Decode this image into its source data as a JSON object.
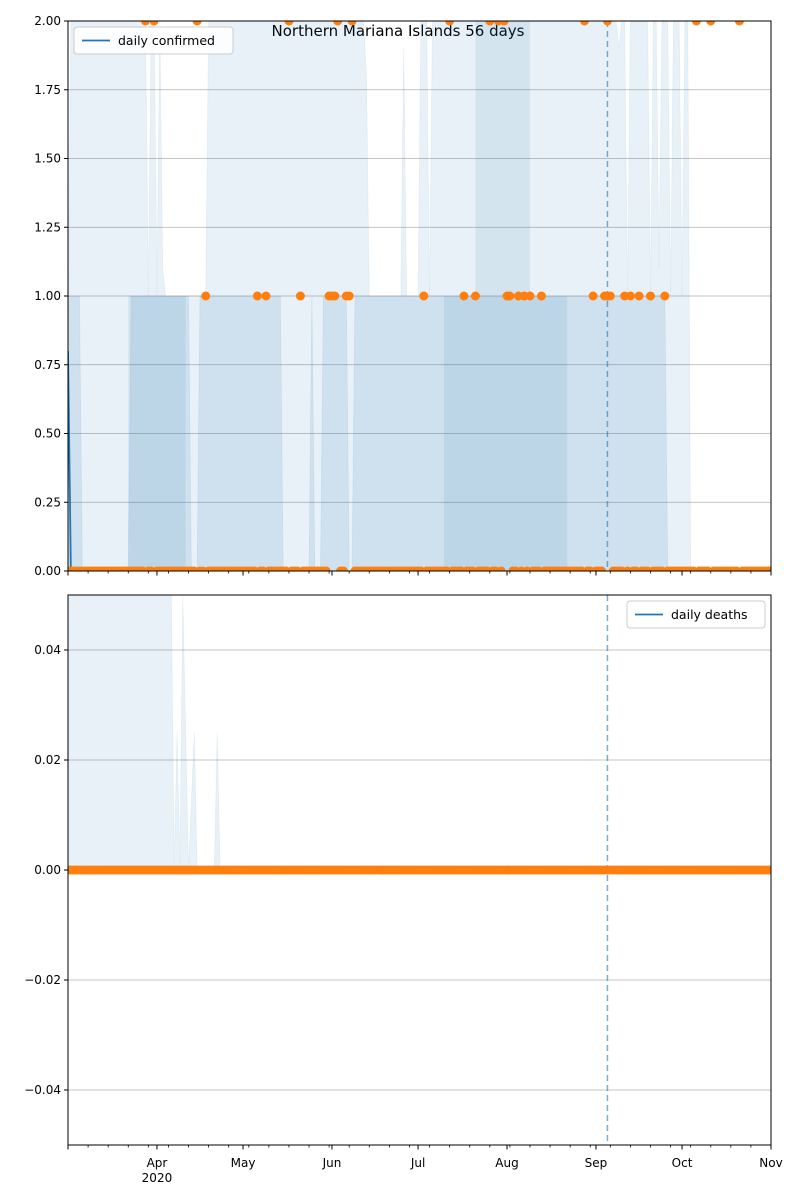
{
  "figure_title": "Northern Mariana Islands 56 days",
  "colors": {
    "line": "#1f77b4",
    "points": "#ff7f0e",
    "band": "#1f77b4",
    "grid": "#b0b0b0",
    "vline": "#1f77b4"
  },
  "chart_data": [
    {
      "type": "line",
      "title": "Northern Mariana Islands 56 days",
      "legend": {
        "label": "daily confirmed",
        "position": "top-left"
      },
      "ylim": [
        0,
        2
      ],
      "yticks": [
        0,
        0.25,
        0.5,
        0.75,
        1.0,
        1.25,
        1.5,
        1.75,
        2.0
      ],
      "ytick_labels": [
        "0.00",
        "0.25",
        "0.50",
        "0.75",
        "1.00",
        "1.25",
        "1.50",
        "1.75",
        "2.00"
      ],
      "grid": "y",
      "xlim": [
        "2020-03-01",
        "2020-11-01"
      ],
      "xtick_labels": [
        {
          "date": "2020-04-01",
          "label": "Apr",
          "sublabel": "2020"
        },
        {
          "date": "2020-05-01",
          "label": "May"
        },
        {
          "date": "2020-06-01",
          "label": "Jun"
        },
        {
          "date": "2020-07-01",
          "label": "Jul"
        },
        {
          "date": "2020-08-01",
          "label": "Aug"
        },
        {
          "date": "2020-09-01",
          "label": "Sep"
        },
        {
          "date": "2020-10-01",
          "label": "Oct"
        },
        {
          "date": "2020-11-01",
          "label": "Nov"
        }
      ],
      "line_series": {
        "name": "daily confirmed",
        "points": [
          [
            "2020-03-01",
            0.8
          ],
          [
            "2020-03-02",
            0
          ]
        ]
      },
      "observed_ones": [
        "2020-04-18",
        "2020-05-06",
        "2020-05-09",
        "2020-05-21",
        "2020-05-31",
        "2020-06-01",
        "2020-06-02",
        "2020-06-06",
        "2020-06-07",
        "2020-07-03",
        "2020-07-17",
        "2020-07-21",
        "2020-08-01",
        "2020-08-02",
        "2020-08-05",
        "2020-08-07",
        "2020-08-09",
        "2020-08-13",
        "2020-08-31",
        "2020-09-04",
        "2020-09-05",
        "2020-09-06",
        "2020-09-11",
        "2020-09-13",
        "2020-09-16",
        "2020-09-20",
        "2020-09-25"
      ],
      "observed_twos": [
        "2020-03-28",
        "2020-03-31",
        "2020-04-15",
        "2020-05-17",
        "2020-06-03",
        "2020-06-08",
        "2020-07-12",
        "2020-07-26",
        "2020-07-29",
        "2020-07-31",
        "2020-08-28",
        "2020-09-05",
        "2020-10-06",
        "2020-10-11",
        "2020-10-21"
      ],
      "vline_date": "2020-09-05",
      "outer_band": [
        [
          "2020-03-01",
          0,
          0.8
        ],
        [
          "2020-03-02",
          0,
          2
        ],
        [
          "2020-03-28",
          0,
          2
        ],
        [
          "2020-03-29",
          0,
          1
        ],
        [
          "2020-03-30",
          0,
          2
        ],
        [
          "2020-03-31",
          0,
          2
        ],
        [
          "2020-04-01",
          0,
          1
        ],
        [
          "2020-04-02",
          0,
          2
        ],
        [
          "2020-04-03",
          0,
          1.1
        ],
        [
          "2020-04-04",
          0,
          1
        ],
        [
          "2020-04-18",
          0,
          1
        ],
        [
          "2020-04-19",
          0,
          2
        ],
        [
          "2020-06-12",
          0,
          2
        ],
        [
          "2020-06-13",
          0,
          1.8
        ],
        [
          "2020-06-14",
          0,
          1
        ],
        [
          "2020-06-25",
          0,
          1
        ],
        [
          "2020-06-26",
          0,
          1.9
        ],
        [
          "2020-06-27",
          0,
          1
        ],
        [
          "2020-07-01",
          0,
          1
        ],
        [
          "2020-07-02",
          0,
          2
        ],
        [
          "2020-07-04",
          0,
          2
        ],
        [
          "2020-07-05",
          0,
          1
        ],
        [
          "2020-07-06",
          0,
          2
        ],
        [
          "2020-09-08",
          0,
          2
        ],
        [
          "2020-09-09",
          0,
          1.9
        ],
        [
          "2020-09-10",
          0,
          2
        ],
        [
          "2020-09-11",
          0,
          2
        ],
        [
          "2020-09-12",
          0,
          1
        ],
        [
          "2020-09-13",
          0,
          2
        ],
        [
          "2020-09-19",
          0,
          2
        ],
        [
          "2020-09-20",
          0,
          1
        ],
        [
          "2020-09-21",
          0,
          2
        ],
        [
          "2020-09-22",
          0,
          2
        ],
        [
          "2020-09-23",
          0,
          1.1
        ],
        [
          "2020-09-24",
          0,
          2
        ],
        [
          "2020-09-26",
          0,
          2
        ],
        [
          "2020-09-27",
          0,
          1
        ],
        [
          "2020-09-28",
          0,
          2
        ],
        [
          "2020-09-30",
          0,
          2
        ],
        [
          "2020-10-01",
          0,
          1
        ],
        [
          "2020-10-02",
          0,
          2
        ],
        [
          "2020-10-03",
          0,
          2
        ],
        [
          "2020-10-04",
          0,
          0
        ]
      ],
      "inner_band": [
        [
          "2020-03-01",
          0,
          1
        ],
        [
          "2020-03-05",
          0,
          1
        ],
        [
          "2020-03-06",
          0,
          0
        ],
        [
          "2020-03-22",
          0,
          0
        ],
        [
          "2020-03-23",
          0,
          1
        ],
        [
          "2020-04-12",
          0,
          1
        ],
        [
          "2020-04-13",
          0,
          0
        ],
        [
          "2020-04-15",
          0,
          0
        ],
        [
          "2020-04-16",
          0,
          1
        ],
        [
          "2020-05-14",
          0,
          1
        ],
        [
          "2020-05-15",
          0,
          0
        ],
        [
          "2020-05-24",
          0,
          0
        ],
        [
          "2020-05-25",
          0,
          1
        ],
        [
          "2020-05-26",
          0,
          0
        ],
        [
          "2020-05-28",
          0,
          0
        ],
        [
          "2020-05-29",
          0,
          1
        ],
        [
          "2020-06-06",
          0,
          1
        ],
        [
          "2020-06-07",
          0,
          0
        ],
        [
          "2020-06-08",
          0,
          0
        ],
        [
          "2020-06-09",
          0,
          1
        ],
        [
          "2020-09-25",
          0,
          1
        ],
        [
          "2020-09-26",
          0,
          0
        ]
      ],
      "dark_band": [
        [
          "2020-03-22",
          0,
          1
        ],
        [
          "2020-04-11",
          0,
          1
        ],
        [
          "2020-07-10",
          0,
          1
        ],
        [
          "2020-08-22",
          0,
          1
        ],
        [
          "2020-07-21",
          1,
          2
        ],
        [
          "2020-08-09",
          1,
          2
        ]
      ]
    },
    {
      "type": "line",
      "title": "",
      "legend": {
        "label": "daily deaths",
        "position": "top-right"
      },
      "ylim": [
        -0.05,
        0.05
      ],
      "yticks": [
        -0.04,
        -0.02,
        0,
        0.02,
        0.04
      ],
      "ytick_labels": [
        "−0.04",
        "−0.02",
        "0.00",
        "0.02",
        "0.04"
      ],
      "grid": "y",
      "xlim": [
        "2020-03-01",
        "2020-11-01"
      ],
      "line_series": {
        "name": "daily deaths",
        "points": []
      },
      "observed_zero_range": [
        "2020-03-01",
        "2020-11-01"
      ],
      "vline_date": "2020-09-05",
      "band": [
        [
          "2020-03-01",
          0,
          0.05
        ],
        [
          "2020-04-06",
          0,
          0.05
        ],
        [
          "2020-04-07",
          0,
          0
        ],
        [
          "2020-04-08",
          0,
          0.025
        ],
        [
          "2020-04-09",
          0,
          0
        ],
        [
          "2020-04-10",
          0,
          0.05
        ],
        [
          "2020-04-12",
          0,
          0
        ],
        [
          "2020-04-14",
          0,
          0.025
        ],
        [
          "2020-04-15",
          0,
          0
        ],
        [
          "2020-04-21",
          0,
          0
        ],
        [
          "2020-04-22",
          0,
          0.025
        ],
        [
          "2020-04-23",
          0,
          0
        ]
      ]
    }
  ]
}
